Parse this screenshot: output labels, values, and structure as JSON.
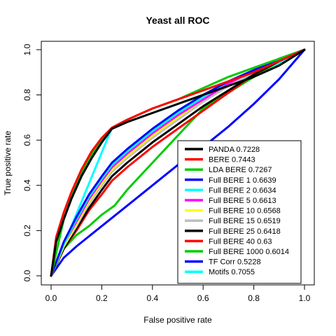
{
  "chart_data": {
    "type": "line",
    "title": "Yeast all ROC",
    "xlabel": "False positive rate",
    "ylabel": "True positive rate",
    "xlim": [
      0,
      1
    ],
    "ylim": [
      0,
      1
    ],
    "xticks": [
      "0.0",
      "0.2",
      "0.4",
      "0.6",
      "0.8",
      "1.0"
    ],
    "yticks": [
      "0.0",
      "0.2",
      "0.4",
      "0.6",
      "0.8",
      "1.0"
    ],
    "grid": false,
    "legend_position": "bottom-right",
    "series": [
      {
        "name": "PANDA 0.7228",
        "color": "#000000",
        "points": [
          [
            0,
            0
          ],
          [
            0.02,
            0.15
          ],
          [
            0.05,
            0.25
          ],
          [
            0.08,
            0.34
          ],
          [
            0.12,
            0.44
          ],
          [
            0.16,
            0.52
          ],
          [
            0.2,
            0.59
          ],
          [
            0.24,
            0.65
          ],
          [
            0.3,
            0.68
          ],
          [
            0.4,
            0.72
          ],
          [
            0.5,
            0.76
          ],
          [
            0.6,
            0.8
          ],
          [
            0.7,
            0.84
          ],
          [
            0.8,
            0.88
          ],
          [
            0.9,
            0.93
          ],
          [
            1.0,
            1.0
          ]
        ]
      },
      {
        "name": "BERE 0.7443",
        "color": "#ff0000",
        "points": [
          [
            0,
            0
          ],
          [
            0.02,
            0.17
          ],
          [
            0.05,
            0.28
          ],
          [
            0.08,
            0.37
          ],
          [
            0.12,
            0.47
          ],
          [
            0.16,
            0.55
          ],
          [
            0.2,
            0.61
          ],
          [
            0.24,
            0.655
          ],
          [
            0.3,
            0.69
          ],
          [
            0.4,
            0.74
          ],
          [
            0.5,
            0.78
          ],
          [
            0.6,
            0.82
          ],
          [
            0.7,
            0.86
          ],
          [
            0.8,
            0.9
          ],
          [
            0.9,
            0.95
          ],
          [
            1.0,
            1.0
          ]
        ]
      },
      {
        "name": "LDA BERE 0.7267",
        "color": "#00cc00",
        "points": [
          [
            0,
            0
          ],
          [
            0.05,
            0.25
          ],
          [
            0.1,
            0.41
          ],
          [
            0.15,
            0.52
          ],
          [
            0.2,
            0.6
          ],
          [
            0.24,
            0.655
          ],
          [
            0.3,
            0.69
          ],
          [
            0.4,
            0.74
          ],
          [
            0.5,
            0.78
          ],
          [
            0.6,
            0.83
          ],
          [
            0.7,
            0.88
          ],
          [
            0.8,
            0.92
          ],
          [
            0.9,
            0.96
          ],
          [
            1.0,
            1.0
          ]
        ]
      },
      {
        "name": "Full BERE 1 0.6639",
        "color": "#0000ff",
        "points": [
          [
            0,
            0
          ],
          [
            0.05,
            0.15
          ],
          [
            0.1,
            0.26
          ],
          [
            0.15,
            0.36
          ],
          [
            0.2,
            0.44
          ],
          [
            0.24,
            0.5
          ],
          [
            0.3,
            0.56
          ],
          [
            0.4,
            0.65
          ],
          [
            0.5,
            0.73
          ],
          [
            0.6,
            0.8
          ],
          [
            0.7,
            0.86
          ],
          [
            0.8,
            0.91
          ],
          [
            0.9,
            0.96
          ],
          [
            1.0,
            1.0
          ]
        ]
      },
      {
        "name": "Full BERE 2 0.6634",
        "color": "#00ffff",
        "points": [
          [
            0,
            0
          ],
          [
            0.05,
            0.14
          ],
          [
            0.1,
            0.25
          ],
          [
            0.15,
            0.35
          ],
          [
            0.2,
            0.43
          ],
          [
            0.24,
            0.49
          ],
          [
            0.3,
            0.55
          ],
          [
            0.4,
            0.64
          ],
          [
            0.5,
            0.72
          ],
          [
            0.6,
            0.79
          ],
          [
            0.7,
            0.86
          ],
          [
            0.8,
            0.91
          ],
          [
            0.9,
            0.96
          ],
          [
            1.0,
            1.0
          ]
        ]
      },
      {
        "name": "Full BERE 5 0.6613",
        "color": "#ff00ff",
        "points": [
          [
            0,
            0
          ],
          [
            0.05,
            0.14
          ],
          [
            0.1,
            0.24
          ],
          [
            0.15,
            0.34
          ],
          [
            0.2,
            0.42
          ],
          [
            0.24,
            0.48
          ],
          [
            0.3,
            0.54
          ],
          [
            0.4,
            0.63
          ],
          [
            0.5,
            0.71
          ],
          [
            0.6,
            0.78
          ],
          [
            0.7,
            0.85
          ],
          [
            0.8,
            0.91
          ],
          [
            0.9,
            0.96
          ],
          [
            1.0,
            1.0
          ]
        ]
      },
      {
        "name": "Full BERE 10 0.6568",
        "color": "#ffff00",
        "points": [
          [
            0,
            0
          ],
          [
            0.05,
            0.13
          ],
          [
            0.1,
            0.23
          ],
          [
            0.15,
            0.33
          ],
          [
            0.2,
            0.41
          ],
          [
            0.24,
            0.47
          ],
          [
            0.3,
            0.53
          ],
          [
            0.4,
            0.62
          ],
          [
            0.5,
            0.7
          ],
          [
            0.6,
            0.78
          ],
          [
            0.7,
            0.85
          ],
          [
            0.8,
            0.91
          ],
          [
            0.9,
            0.96
          ],
          [
            1.0,
            1.0
          ]
        ]
      },
      {
        "name": "Full BERE 15 0.6519",
        "color": "#bebebe",
        "points": [
          [
            0,
            0
          ],
          [
            0.05,
            0.13
          ],
          [
            0.1,
            0.22
          ],
          [
            0.15,
            0.32
          ],
          [
            0.2,
            0.4
          ],
          [
            0.24,
            0.46
          ],
          [
            0.3,
            0.52
          ],
          [
            0.4,
            0.61
          ],
          [
            0.5,
            0.69
          ],
          [
            0.6,
            0.77
          ],
          [
            0.7,
            0.84
          ],
          [
            0.8,
            0.9
          ],
          [
            0.9,
            0.96
          ],
          [
            1.0,
            1.0
          ]
        ]
      },
      {
        "name": "Full BERE 25 0.6418",
        "color": "#000000",
        "points": [
          [
            0,
            0
          ],
          [
            0.05,
            0.12
          ],
          [
            0.1,
            0.21
          ],
          [
            0.15,
            0.3
          ],
          [
            0.2,
            0.38
          ],
          [
            0.24,
            0.44
          ],
          [
            0.3,
            0.5
          ],
          [
            0.4,
            0.59
          ],
          [
            0.5,
            0.67
          ],
          [
            0.6,
            0.75
          ],
          [
            0.7,
            0.82
          ],
          [
            0.8,
            0.89
          ],
          [
            0.9,
            0.95
          ],
          [
            1.0,
            1.0
          ]
        ]
      },
      {
        "name": "Full BERE 40 0.63",
        "color": "#ff0000",
        "points": [
          [
            0,
            0
          ],
          [
            0.05,
            0.12
          ],
          [
            0.1,
            0.2
          ],
          [
            0.15,
            0.29
          ],
          [
            0.2,
            0.36
          ],
          [
            0.24,
            0.42
          ],
          [
            0.3,
            0.48
          ],
          [
            0.4,
            0.57
          ],
          [
            0.5,
            0.65
          ],
          [
            0.6,
            0.73
          ],
          [
            0.7,
            0.81
          ],
          [
            0.8,
            0.89
          ],
          [
            0.9,
            0.95
          ],
          [
            1.0,
            1.0
          ]
        ]
      },
      {
        "name": "Full BERE 1000 0.6014",
        "color": "#00cc00",
        "points": [
          [
            0,
            0
          ],
          [
            0.05,
            0.12
          ],
          [
            0.1,
            0.18
          ],
          [
            0.15,
            0.22
          ],
          [
            0.2,
            0.27
          ],
          [
            0.25,
            0.31
          ],
          [
            0.3,
            0.38
          ],
          [
            0.35,
            0.44
          ],
          [
            0.4,
            0.5
          ],
          [
            0.5,
            0.62
          ],
          [
            0.6,
            0.74
          ],
          [
            0.7,
            0.81
          ],
          [
            0.8,
            0.88
          ],
          [
            0.9,
            0.95
          ],
          [
            1.0,
            1.0
          ]
        ]
      },
      {
        "name": "TF Corr 0.5228",
        "color": "#0000ff",
        "points": [
          [
            0,
            0
          ],
          [
            0.05,
            0.08
          ],
          [
            0.1,
            0.13
          ],
          [
            0.2,
            0.22
          ],
          [
            0.3,
            0.31
          ],
          [
            0.4,
            0.4
          ],
          [
            0.5,
            0.49
          ],
          [
            0.6,
            0.57
          ],
          [
            0.7,
            0.66
          ],
          [
            0.8,
            0.76
          ],
          [
            0.9,
            0.87
          ],
          [
            1.0,
            1.0
          ]
        ]
      },
      {
        "name": "Motifs 0.7055",
        "color": "#00ffff",
        "points": [
          [
            0,
            0
          ],
          [
            0.24,
            0.655
          ],
          [
            0.3,
            0.68
          ],
          [
            0.4,
            0.72
          ],
          [
            0.5,
            0.76
          ],
          [
            0.6,
            0.8
          ],
          [
            0.7,
            0.84
          ],
          [
            0.8,
            0.89
          ],
          [
            0.9,
            0.94
          ],
          [
            1.0,
            1.0
          ]
        ]
      }
    ]
  }
}
